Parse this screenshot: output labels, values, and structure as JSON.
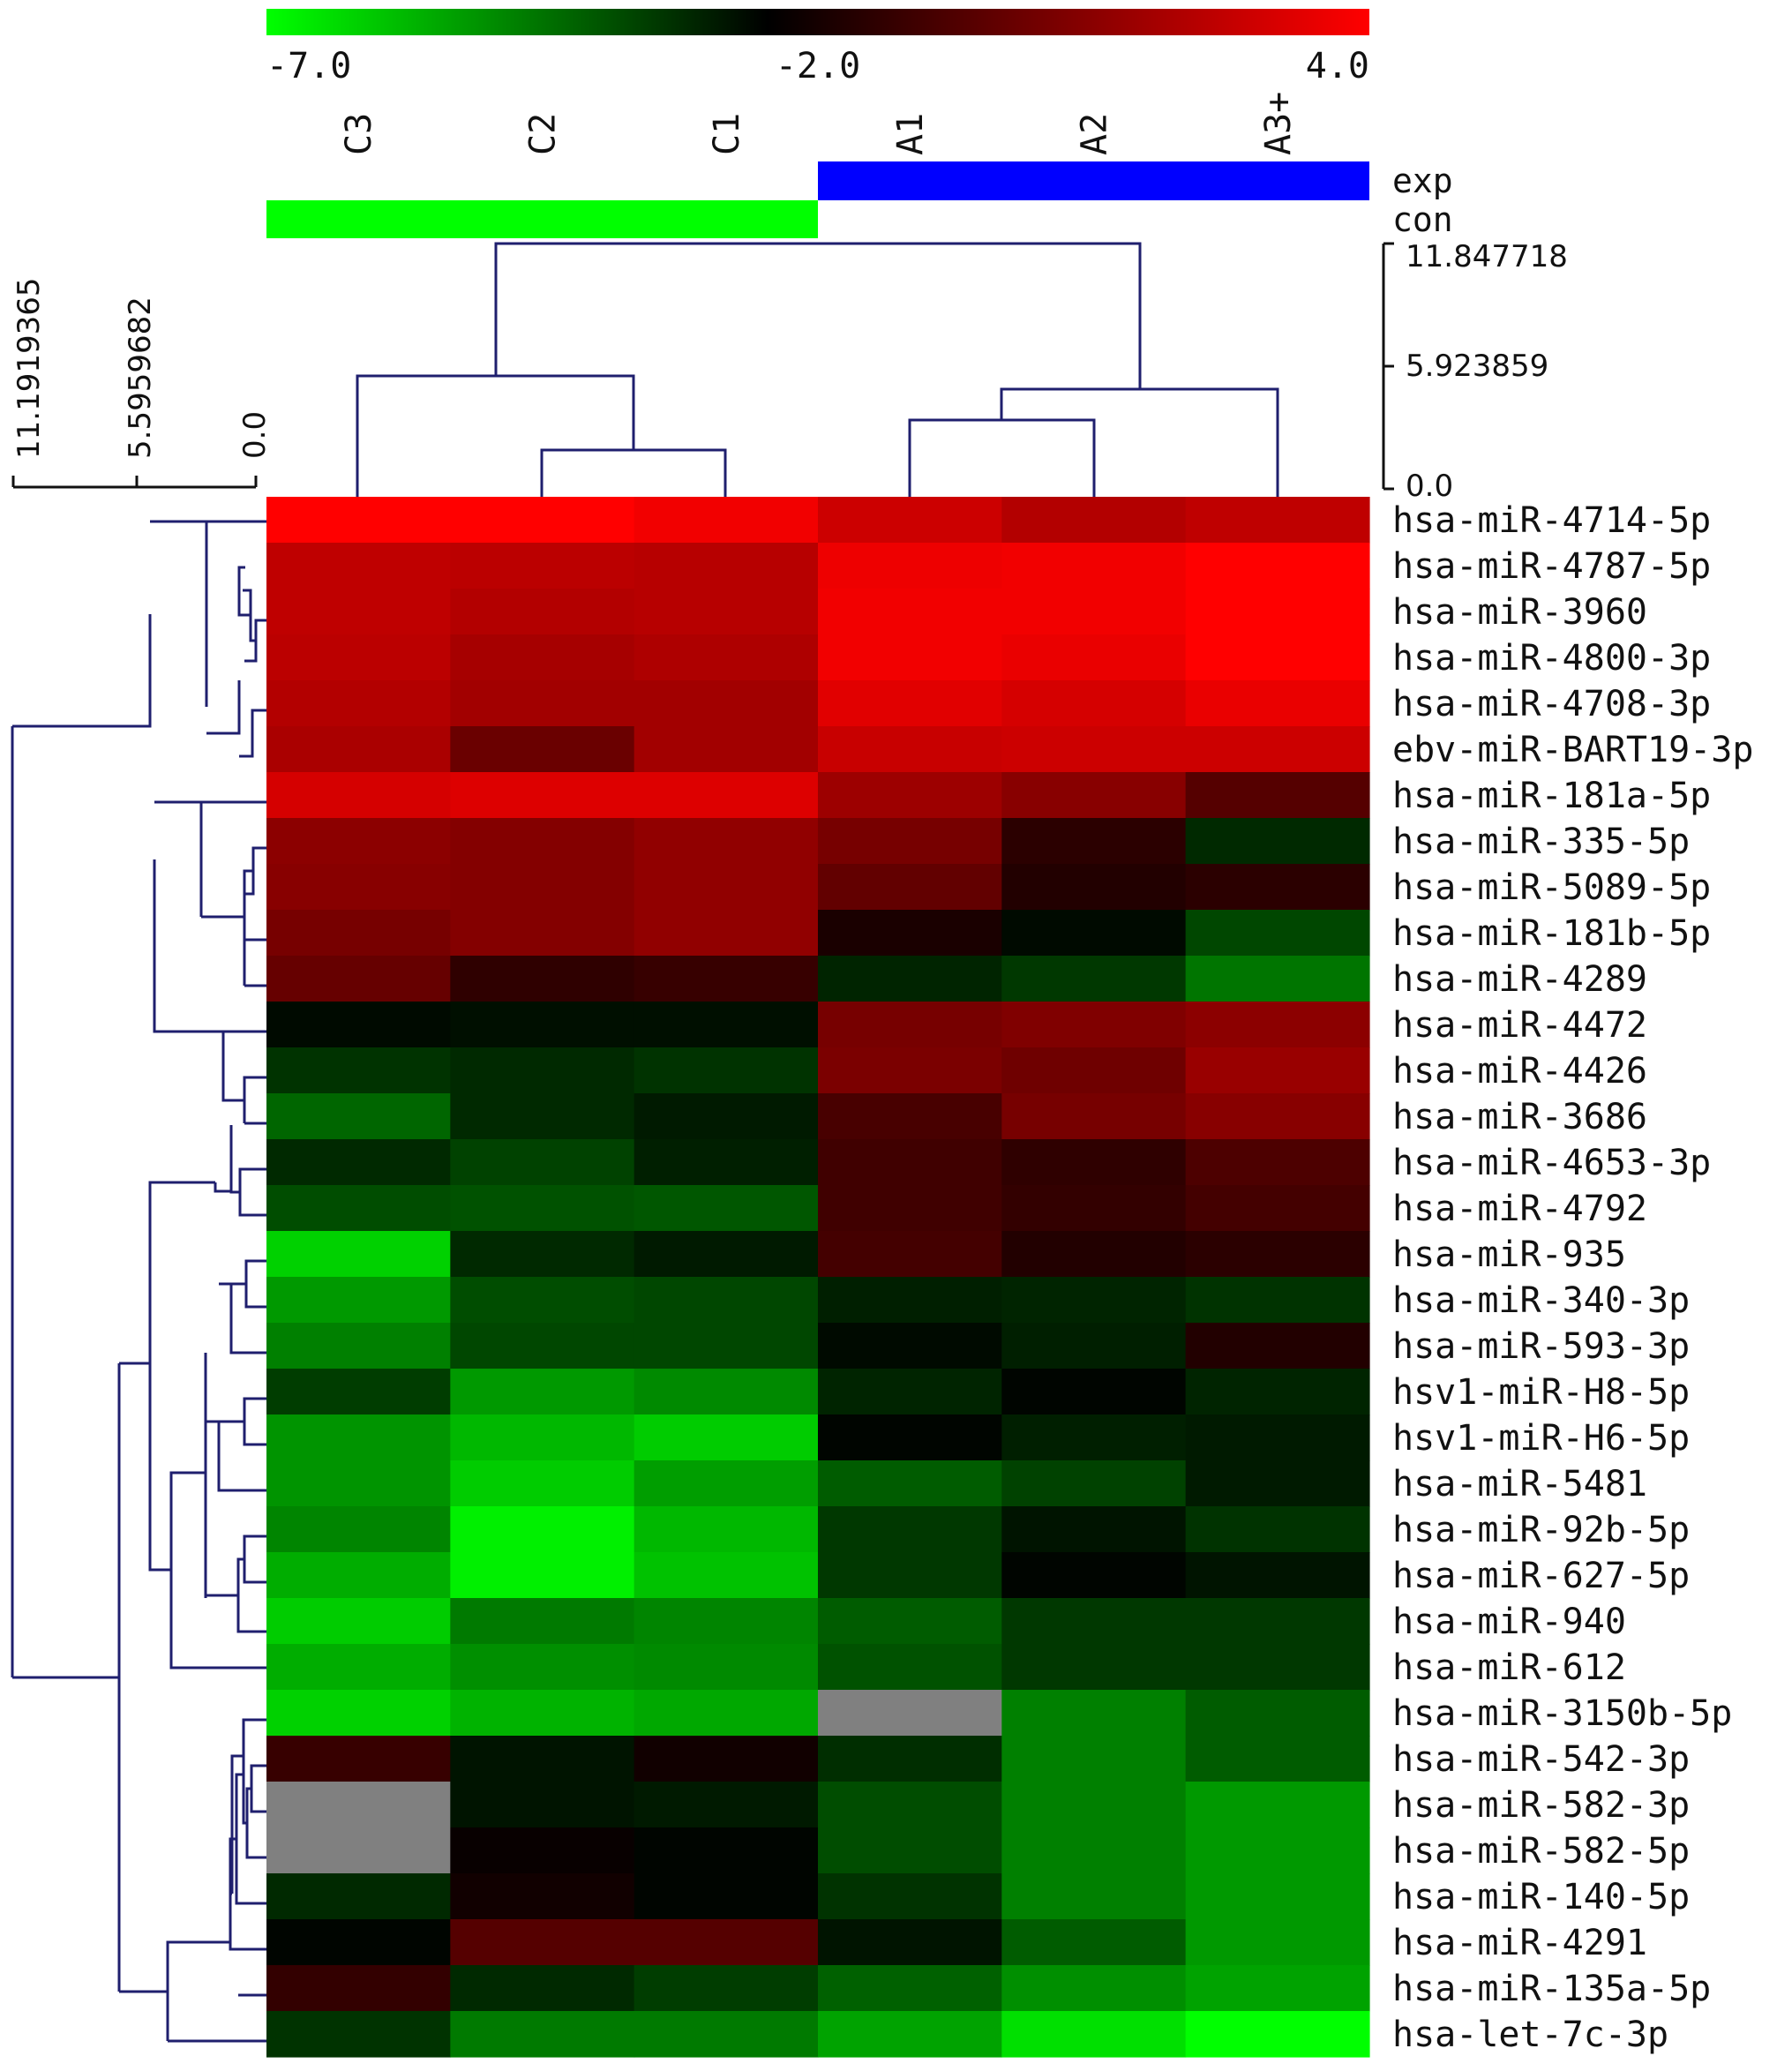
{
  "chart_data": {
    "type": "heatmap",
    "color_scale": {
      "min": -7.0,
      "mid": -2.0,
      "max": 4.0,
      "tick_labels": [
        "-7.0",
        "-2.0",
        "4.0"
      ],
      "low_color": "#00ff00",
      "mid_color": "#000000",
      "high_color": "#ff0000"
    },
    "columns": [
      "C3",
      "C2",
      "C1",
      "A1",
      "A2",
      "A3+"
    ],
    "groups": [
      {
        "label": "exp",
        "color": "#0000ff",
        "columns": [
          "A1",
          "A2",
          "A3+"
        ]
      },
      {
        "label": "con",
        "color": "#00ff00",
        "columns": [
          "C3",
          "C2",
          "C1"
        ]
      }
    ],
    "column_dendrogram_scale": [
      "11.847718",
      "5.923859",
      "0.0"
    ],
    "row_dendrogram_scale": [
      "11.1919365",
      "5.5959682",
      "0.0"
    ],
    "rows": [
      "hsa-miR-4714-5p",
      "hsa-miR-4787-5p",
      "hsa-miR-3960",
      "hsa-miR-4800-3p",
      "hsa-miR-4708-3p",
      "ebv-miR-BART19-3p",
      "hsa-miR-181a-5p",
      "hsa-miR-335-5p",
      "hsa-miR-5089-5p",
      "hsa-miR-181b-5p",
      "hsa-miR-4289",
      "hsa-miR-4472",
      "hsa-miR-4426",
      "hsa-miR-3686",
      "hsa-miR-4653-3p",
      "hsa-miR-4792",
      "hsa-miR-935",
      "hsa-miR-340-3p",
      "hsa-miR-593-3p",
      "hsv1-miR-H8-5p",
      "hsv1-miR-H6-5p",
      "hsa-miR-5481",
      "hsa-miR-92b-5p",
      "hsa-miR-627-5p",
      "hsa-miR-940",
      "hsa-miR-612",
      "hsa-miR-3150b-5p",
      "hsa-miR-542-3p",
      "hsa-miR-582-3p",
      "hsa-miR-582-5p",
      "hsa-miR-140-5p",
      "hsa-miR-4291",
      "hsa-miR-135a-5p",
      "hsa-let-7c-3p"
    ],
    "values": [
      [
        4.0,
        4.0,
        3.7,
        2.8,
        2.2,
        2.5
      ],
      [
        2.5,
        2.4,
        2.3,
        3.6,
        3.7,
        4.0
      ],
      [
        2.5,
        2.2,
        2.3,
        3.7,
        3.7,
        4.0
      ],
      [
        2.4,
        1.9,
        2.1,
        3.7,
        3.5,
        4.0
      ],
      [
        2.2,
        1.8,
        1.8,
        3.3,
        3.0,
        3.5
      ],
      [
        2.0,
        0.5,
        1.8,
        2.7,
        2.8,
        2.8
      ],
      [
        3.0,
        3.2,
        3.2,
        1.7,
        1.2,
        0.0
      ],
      [
        1.3,
        1.1,
        1.4,
        0.8,
        -1.0,
        -2.8
      ],
      [
        1.2,
        1.1,
        1.4,
        0.3,
        -1.2,
        -1.0
      ],
      [
        0.8,
        1.1,
        1.4,
        -1.4,
        -2.2,
        -3.4
      ],
      [
        0.4,
        -0.9,
        -0.7,
        -2.7,
        -3.1,
        -4.3
      ],
      [
        -2.2,
        -2.3,
        -2.3,
        0.8,
        1.0,
        1.3
      ],
      [
        -3.0,
        -2.8,
        -3.0,
        0.9,
        0.6,
        1.6
      ],
      [
        -4.0,
        -2.8,
        -2.5,
        -0.3,
        0.8,
        1.2
      ],
      [
        -2.8,
        -3.3,
        -2.6,
        -0.5,
        -0.9,
        -0.2
      ],
      [
        -3.5,
        -3.6,
        -3.7,
        -0.5,
        -0.8,
        -0.4
      ],
      [
        -6.1,
        -2.8,
        -2.5,
        -0.4,
        -1.2,
        -1.0
      ],
      [
        -5.0,
        -3.5,
        -3.4,
        -2.6,
        -2.7,
        -3.0
      ],
      [
        -4.5,
        -3.4,
        -3.4,
        -2.2,
        -2.6,
        -1.2
      ],
      [
        -3.2,
        -5.0,
        -4.7,
        -2.7,
        -2.1,
        -2.7
      ],
      [
        -4.9,
        -5.6,
        -6.0,
        -2.1,
        -2.6,
        -2.5
      ],
      [
        -4.9,
        -6.0,
        -5.1,
        -3.8,
        -3.3,
        -2.5
      ],
      [
        -4.6,
        -6.7,
        -5.6,
        -3.1,
        -2.4,
        -3.0
      ],
      [
        -5.4,
        -6.7,
        -5.8,
        -3.1,
        -2.1,
        -2.4
      ],
      [
        -6.0,
        -4.4,
        -4.6,
        -3.8,
        -3.1,
        -3.1
      ],
      [
        -5.4,
        -4.8,
        -4.7,
        -3.6,
        -3.1,
        -3.1
      ],
      [
        -6.1,
        -5.5,
        -5.3,
        null,
        -4.5,
        -3.8
      ],
      [
        -0.7,
        -2.4,
        -1.6,
        -2.9,
        -4.5,
        -3.8
      ],
      [
        null,
        -2.4,
        -2.5,
        -3.5,
        -4.5,
        -5.0
      ],
      [
        null,
        -1.8,
        -2.1,
        -3.5,
        -4.5,
        -5.0
      ],
      [
        -2.8,
        -1.6,
        -2.1,
        -3.0,
        -4.5,
        -5.0
      ],
      [
        -2.1,
        0.0,
        0.0,
        -2.4,
        -3.8,
        -5.0
      ],
      [
        -0.8,
        -2.8,
        -3.2,
        -3.9,
        -4.8,
        -5.2
      ],
      [
        -3.0,
        -4.4,
        -4.4,
        -5.2,
        -6.4,
        -7.0
      ]
    ]
  }
}
